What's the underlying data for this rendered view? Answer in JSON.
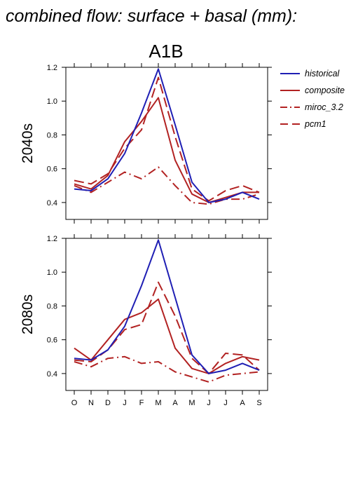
{
  "title": "combined flow: surface + basal (mm):",
  "scenario": "A1B",
  "legend": [
    {
      "label": "historical",
      "color": "#1f1fb4",
      "dash": "solid"
    },
    {
      "label": "composite",
      "color": "#b22222",
      "dash": "solid"
    },
    {
      "label": "miroc_3.2",
      "color": "#b22222",
      "dash": "dashdot"
    },
    {
      "label": "pcm1",
      "color": "#b22222",
      "dash": "dashed"
    }
  ],
  "chart_data": [
    {
      "type": "line",
      "panel": "2040s",
      "ylabel": "2040s",
      "categories": [
        "O",
        "N",
        "D",
        "J",
        "F",
        "M",
        "A",
        "M",
        "J",
        "J",
        "A",
        "S"
      ],
      "ylim": [
        0.3,
        1.2
      ],
      "yticks": [
        "0.4",
        "0.6",
        "0.8",
        "1.0",
        "1.2"
      ],
      "series": [
        {
          "name": "historical",
          "values": [
            0.48,
            0.47,
            0.54,
            0.69,
            0.93,
            1.19,
            0.86,
            0.52,
            0.4,
            0.42,
            0.46,
            0.42
          ]
        },
        {
          "name": "composite",
          "values": [
            0.51,
            0.48,
            0.56,
            0.76,
            0.88,
            1.02,
            0.65,
            0.45,
            0.4,
            0.43,
            0.46,
            0.46
          ]
        },
        {
          "name": "miroc_3.2",
          "values": [
            0.5,
            0.46,
            0.52,
            0.58,
            0.54,
            0.61,
            0.5,
            0.4,
            0.39,
            0.42,
            0.42,
            0.45
          ]
        },
        {
          "name": "pcm1",
          "values": [
            0.53,
            0.51,
            0.57,
            0.72,
            0.83,
            1.14,
            0.79,
            0.48,
            0.41,
            0.47,
            0.5,
            0.46
          ]
        }
      ]
    },
    {
      "type": "line",
      "panel": "2080s",
      "ylabel": "2080s",
      "categories": [
        "O",
        "N",
        "D",
        "J",
        "F",
        "M",
        "A",
        "M",
        "J",
        "J",
        "A",
        "S"
      ],
      "ylim": [
        0.3,
        1.2
      ],
      "yticks": [
        "0.4",
        "0.6",
        "0.8",
        "1.0",
        "1.2"
      ],
      "series": [
        {
          "name": "historical",
          "values": [
            0.49,
            0.48,
            0.54,
            0.68,
            0.92,
            1.19,
            0.85,
            0.51,
            0.4,
            0.42,
            0.46,
            0.42
          ]
        },
        {
          "name": "composite",
          "values": [
            0.55,
            0.48,
            0.6,
            0.72,
            0.76,
            0.84,
            0.55,
            0.43,
            0.4,
            0.46,
            0.5,
            0.48
          ]
        },
        {
          "name": "miroc_3.2",
          "values": [
            0.47,
            0.44,
            0.49,
            0.5,
            0.46,
            0.47,
            0.41,
            0.38,
            0.35,
            0.39,
            0.4,
            0.41
          ]
        },
        {
          "name": "pcm1",
          "values": [
            0.48,
            0.47,
            0.54,
            0.66,
            0.69,
            0.94,
            0.74,
            0.49,
            0.4,
            0.52,
            0.51,
            0.42
          ]
        }
      ]
    }
  ]
}
